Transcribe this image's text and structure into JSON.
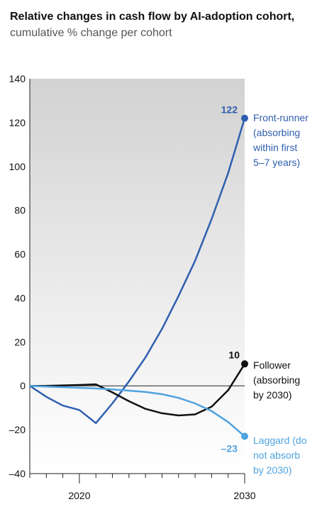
{
  "chart_data": {
    "type": "line",
    "title": "Relative changes in cash flow by AI-adoption cohort,",
    "subtitle": "cumulative % change per cohort",
    "x": [
      2017,
      2018,
      2019,
      2020,
      2021,
      2022,
      2023,
      2024,
      2025,
      2026,
      2027,
      2028,
      2029,
      2030
    ],
    "xlim": [
      2017,
      2030
    ],
    "x_ticks": [
      "2020",
      "2030"
    ],
    "ylim": [
      -40,
      140
    ],
    "y_ticks": [
      "140",
      "120",
      "100",
      "80",
      "60",
      "40",
      "20",
      "0",
      "–20",
      "–40"
    ],
    "grid": false,
    "background": "gradient-gray",
    "series": [
      {
        "id": "front_runner",
        "label_lines": [
          "Front-runner",
          "(absorbing",
          "within first",
          "5–7 years)"
        ],
        "end_label": "122",
        "color": "#2f5faf",
        "values": [
          0,
          -5,
          -9,
          -11,
          -17,
          -8,
          2,
          13,
          26,
          41,
          57,
          76,
          97,
          122
        ]
      },
      {
        "id": "follower",
        "label_lines": [
          "Follower",
          "(absorbing",
          "by 2030)"
        ],
        "end_label": "10",
        "color": "#111111",
        "values": [
          0,
          0,
          0.2,
          0.4,
          0.7,
          -3,
          -7,
          -10.5,
          -12.5,
          -13.5,
          -13,
          -9.5,
          -2,
          10
        ]
      },
      {
        "id": "laggard",
        "label_lines": [
          "Laggard (do",
          "not absorb",
          "by 2030)"
        ],
        "end_label": "–23",
        "color": "#4fa3df",
        "values": [
          0,
          -0.3,
          -0.6,
          -0.9,
          -1.2,
          -1.6,
          -2.2,
          -2.8,
          -3.8,
          -5.5,
          -8,
          -11.5,
          -16.5,
          -23
        ]
      }
    ]
  }
}
